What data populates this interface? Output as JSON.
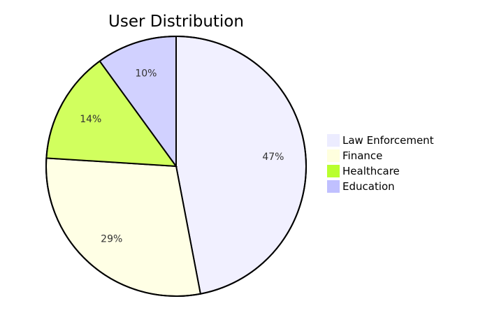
{
  "chart_data": {
    "type": "pie",
    "title": "User Distribution",
    "legend": "right",
    "start": "top-clockwise",
    "slices": [
      {
        "label": "Law Enforcement",
        "value": 47,
        "display": "47%",
        "color": "#f1f0ff",
        "legend_color": "#ececff"
      },
      {
        "label": "Finance",
        "value": 29,
        "display": "29%",
        "color": "#ffffe5",
        "legend_color": "#ffffde"
      },
      {
        "label": "Healthcare",
        "value": 14,
        "display": "14%",
        "color": "#d1ff5e",
        "legend_color": "#b9ff2e"
      },
      {
        "label": "Education",
        "value": 10,
        "display": "10%",
        "color": "#d1d1ff",
        "legend_color": "#c0c0ff"
      }
    ]
  }
}
